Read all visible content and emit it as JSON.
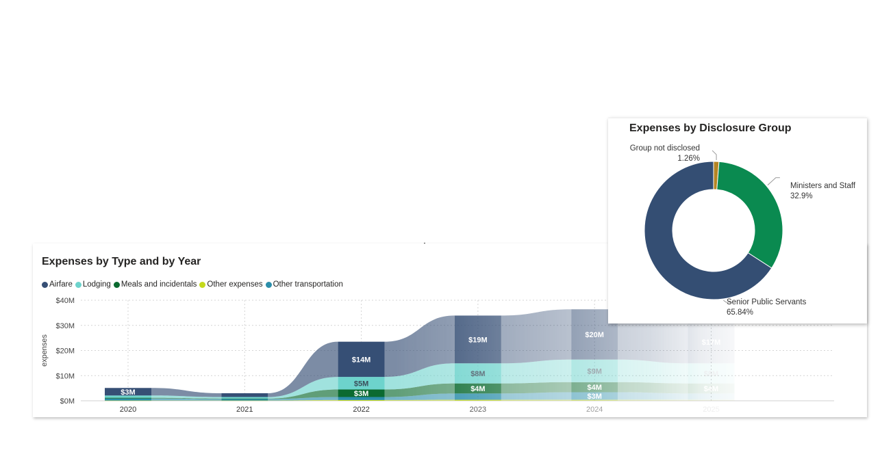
{
  "ribbon_card": {
    "title": "Expenses by Type and by Year"
  },
  "donut_card": {
    "title": "Expenses by Disclosure Group"
  },
  "colors": {
    "Airfare": "#364f75",
    "Lodging": "#6dd3cc",
    "Meals and incidentals": "#0b6a30",
    "Other expenses": "#c4d91c",
    "Other transportation": "#2b8eaa",
    "Ministers and Staff": "#0a8a50",
    "Senior Public Servants": "#344e73",
    "Group not disclosed": "#b58523"
  },
  "chart_data": [
    {
      "type": "area",
      "subtype": "ribbon",
      "title": "Expenses by Type and by Year",
      "ylabel": "expenses",
      "xlabel": "",
      "ylim": [
        0,
        40
      ],
      "yunit": "M",
      "y_ticks": [
        "$0M",
        "$10M",
        "$20M",
        "$30M",
        "$40M"
      ],
      "y_tick_values": [
        0,
        10,
        20,
        30,
        40
      ],
      "categories": [
        "2020",
        "2021",
        "2022",
        "2023",
        "2024",
        "2025"
      ],
      "legend_position": "top-left",
      "grid": true,
      "series": [
        {
          "name": "Airfare",
          "values": [
            3,
            1.5,
            14,
            19,
            20,
            17
          ],
          "labels": [
            "$3M",
            "",
            "$14M",
            "$19M",
            "$20M",
            "$17M"
          ]
        },
        {
          "name": "Lodging",
          "values": [
            0.9,
            0.6,
            5,
            8,
            9,
            8
          ],
          "labels": [
            "",
            "",
            "$5M",
            "$8M",
            "$9M",
            "$8M"
          ]
        },
        {
          "name": "Meals and incidentals",
          "values": [
            0.3,
            0.2,
            3,
            4,
            4,
            4
          ],
          "labels": [
            "",
            "",
            "$3M",
            "$4M",
            "$4M",
            "$4M"
          ]
        },
        {
          "name": "Other expenses",
          "values": [
            0.1,
            0.1,
            0.3,
            0.4,
            0.4,
            0.4
          ],
          "labels": [
            "",
            "",
            "",
            "",
            "",
            ""
          ]
        },
        {
          "name": "Other transportation",
          "values": [
            0.8,
            0.6,
            1.2,
            2.5,
            3,
            2.5
          ],
          "labels": [
            "",
            "",
            "",
            "",
            "$3M",
            ""
          ]
        }
      ]
    },
    {
      "type": "pie",
      "subtype": "donut",
      "title": "Expenses by Disclosure Group",
      "categories": [
        "Group not disclosed",
        "Ministers and Staff",
        "Senior Public Servants"
      ],
      "values": [
        1.26,
        32.9,
        65.84
      ],
      "labels": [
        "1.26%",
        "32.9%",
        "65.84%"
      ]
    }
  ]
}
